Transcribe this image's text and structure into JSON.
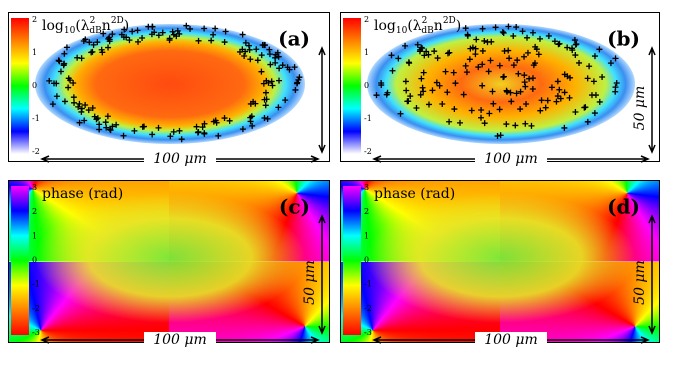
{
  "panels": [
    {
      "label": "(a)",
      "colorbar": {
        "label_parts": [
          "log",
          "10",
          "(λ",
          "2",
          "dB",
          "n",
          "2D",
          ")"
        ],
        "ticks": [
          2,
          1,
          0,
          -1,
          -2
        ]
      },
      "scale_x": "100 μm"
    },
    {
      "label": "(b)",
      "colorbar": {
        "label_parts": [
          "log",
          "10",
          "(λ",
          "2",
          "dB",
          "n",
          "2D",
          ")"
        ],
        "ticks": [
          2,
          1,
          0,
          -1,
          -2
        ]
      },
      "scale_x": "100 μm",
      "scale_y": "50 μm"
    },
    {
      "label": "(c)",
      "colorbar": {
        "label_parts": [
          "phase (rad)"
        ],
        "ticks": [
          3,
          2,
          1,
          0,
          -1,
          -2,
          -3
        ]
      },
      "scale_x": "100 μm",
      "scale_y": "50 μm"
    },
    {
      "label": "(d)",
      "colorbar": {
        "label_parts": [
          "phase (rad)"
        ],
        "ticks": [
          3,
          2,
          1,
          0,
          -1,
          -2,
          -3
        ]
      },
      "scale_x": "100 μm",
      "scale_y": "50 μm"
    }
  ]
}
